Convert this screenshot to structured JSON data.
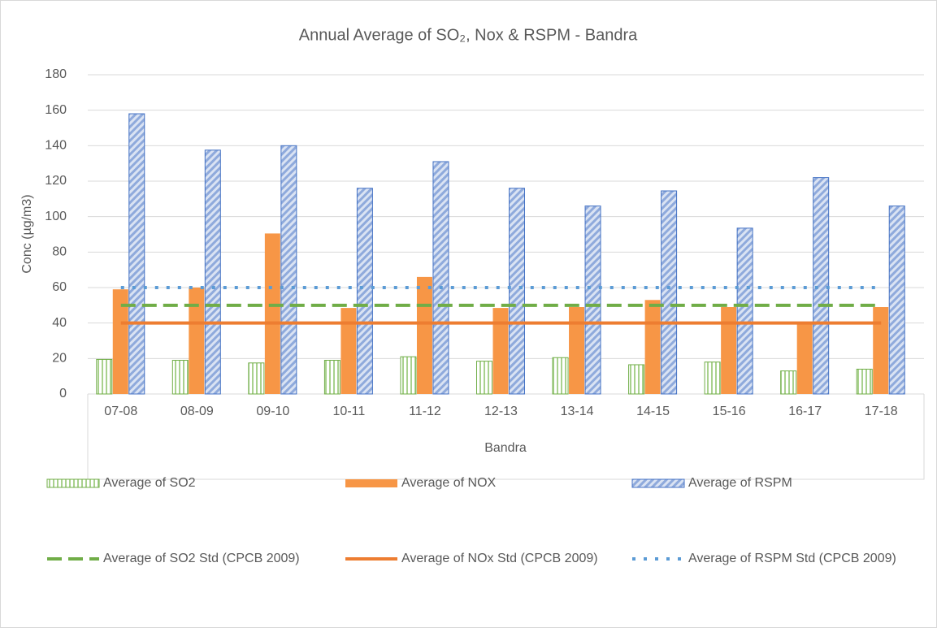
{
  "chart_data": {
    "type": "bar",
    "title": "Annual Average of SO₂, Nox & RSPM - Bandra",
    "x_label": "Bandra",
    "y_label": "Conc (µg/m3)",
    "categories": [
      "07-08",
      "08-09",
      "09-10",
      "10-11",
      "11-12",
      "12-13",
      "13-14",
      "14-15",
      "15-16",
      "16-17",
      "17-18"
    ],
    "ylim": [
      0,
      180
    ],
    "yticks": [
      0,
      20,
      40,
      60,
      80,
      100,
      120,
      140,
      160,
      180
    ],
    "grid": true,
    "legend": "bottom",
    "series": [
      {
        "name": "Average of SO2",
        "type": "bar",
        "pattern": "vertical-stripes",
        "color": "#70ad47",
        "values": [
          19.5,
          19,
          17.5,
          19,
          21,
          18.5,
          20.5,
          16.5,
          18,
          13,
          14
        ]
      },
      {
        "name": "Average of NOX",
        "type": "bar",
        "pattern": "solid",
        "color": "#f79646",
        "values": [
          59,
          60,
          90.5,
          48.5,
          66,
          48.5,
          49,
          53,
          49,
          40,
          49
        ]
      },
      {
        "name": "Average of RSPM",
        "type": "bar",
        "pattern": "diagonal-stripes",
        "color": "#4472c4",
        "values": [
          158,
          137.5,
          140,
          116,
          131,
          116,
          106,
          114.5,
          93.5,
          122,
          106
        ]
      },
      {
        "name": "Average of SO2 Std (CPCB 2009)",
        "type": "line",
        "dash": "dashed",
        "color": "#70ad47",
        "values": [
          50,
          50,
          50,
          50,
          50,
          50,
          50,
          50,
          50,
          50,
          50
        ]
      },
      {
        "name": "Average of NOx Std (CPCB 2009)",
        "type": "line",
        "dash": "solid",
        "color": "#ed7d31",
        "values": [
          40,
          40,
          40,
          40,
          40,
          40,
          40,
          40,
          40,
          40,
          40
        ]
      },
      {
        "name": "Average of RSPM Std (CPCB 2009)",
        "type": "line",
        "dash": "dotted",
        "color": "#5b9bd5",
        "values": [
          60,
          60,
          60,
          60,
          60,
          60,
          60,
          60,
          60,
          60,
          60
        ]
      }
    ]
  }
}
